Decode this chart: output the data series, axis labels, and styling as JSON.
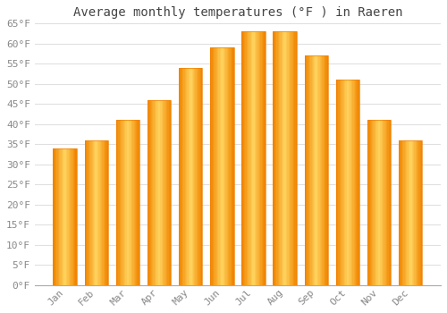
{
  "title": "Average monthly temperatures (°F ) in Raeren",
  "months": [
    "Jan",
    "Feb",
    "Mar",
    "Apr",
    "May",
    "Jun",
    "Jul",
    "Aug",
    "Sep",
    "Oct",
    "Nov",
    "Dec"
  ],
  "values": [
    34,
    36,
    41,
    46,
    54,
    59,
    63,
    63,
    57,
    51,
    41,
    36
  ],
  "bar_color_main": "#FFA520",
  "bar_color_light": "#FFD070",
  "bar_color_dark": "#F08000",
  "ylim": [
    0,
    65
  ],
  "yticks": [
    0,
    5,
    10,
    15,
    20,
    25,
    30,
    35,
    40,
    45,
    50,
    55,
    60,
    65
  ],
  "background_color": "#ffffff",
  "grid_color": "#e0e0e0",
  "title_fontsize": 10,
  "tick_fontsize": 8,
  "font_family": "monospace",
  "bar_width": 0.75
}
